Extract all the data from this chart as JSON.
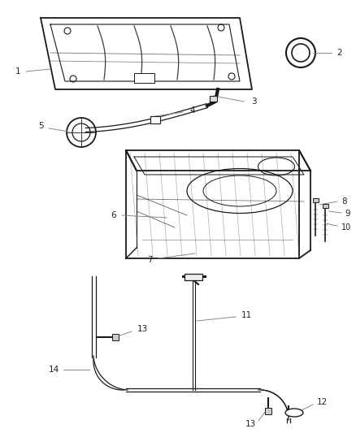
{
  "bg_color": "#ffffff",
  "line_color": "#1a1a1a",
  "label_color": "#222222",
  "leader_color": "#888888",
  "figsize": [
    4.38,
    5.33
  ],
  "dpi": 100
}
